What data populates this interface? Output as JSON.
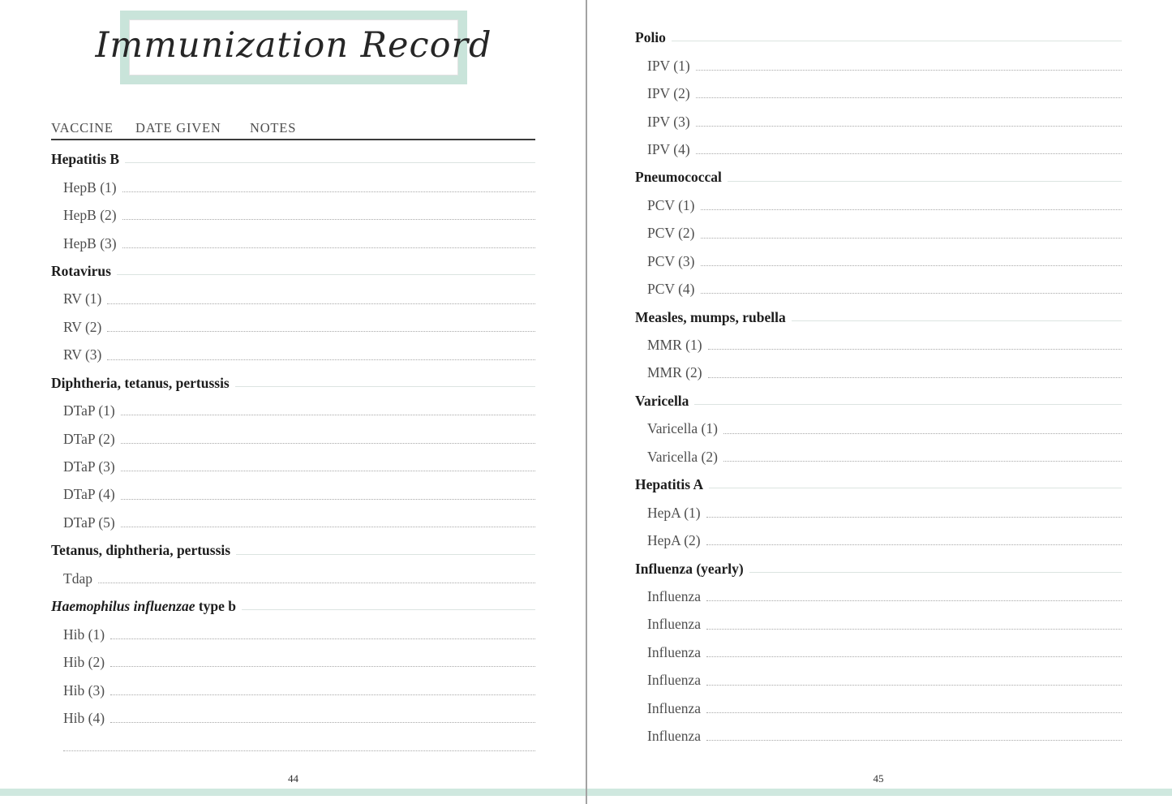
{
  "title": "Immunization Record",
  "columns": [
    "VACCINE",
    "DATE GIVEN",
    "NOTES"
  ],
  "colors": {
    "mint_border": "#c9e4da",
    "bottom_bar": "#cfe8df",
    "divider": "#a3a3a3",
    "section_line": "#dce4e1",
    "header_underline": "#3b3b3b"
  },
  "pages": [
    {
      "number": "44",
      "sections": [
        {
          "title": "Hepatitis B",
          "entries": [
            "HepB (1)",
            "HepB (2)",
            "HepB (3)"
          ]
        },
        {
          "title": "Rotavirus",
          "entries": [
            "RV (1)",
            "RV (2)",
            "RV (3)"
          ]
        },
        {
          "title": "Diphtheria, tetanus, pertussis",
          "entries": [
            "DTaP (1)",
            "DTaP (2)",
            "DTaP (3)",
            "DTaP (4)",
            "DTaP (5)"
          ]
        },
        {
          "title": "Tetanus, diphtheria, pertussis",
          "entries": [
            "Tdap"
          ]
        },
        {
          "title": "Haemophilus influenzae type b",
          "title_italic_prefix": "Haemophilus influenzae",
          "title_plain_suffix": " type b",
          "entries": [
            "Hib (1)",
            "Hib (2)",
            "Hib (3)",
            "Hib (4)",
            ""
          ]
        }
      ]
    },
    {
      "number": "45",
      "sections": [
        {
          "title": "Polio",
          "entries": [
            "IPV (1)",
            "IPV (2)",
            "IPV (3)",
            "IPV (4)"
          ]
        },
        {
          "title": "Pneumococcal",
          "entries": [
            "PCV (1)",
            "PCV (2)",
            "PCV (3)",
            "PCV (4)"
          ]
        },
        {
          "title": "Measles, mumps, rubella",
          "entries": [
            "MMR (1)",
            "MMR (2)"
          ]
        },
        {
          "title": "Varicella",
          "entries": [
            "Varicella (1)",
            "Varicella (2)"
          ]
        },
        {
          "title": "Hepatitis A",
          "entries": [
            "HepA (1)",
            "HepA (2)"
          ]
        },
        {
          "title": "Influenza (yearly)",
          "entries": [
            "Influenza",
            "Influenza",
            "Influenza",
            "Influenza",
            "Influenza",
            "Influenza"
          ]
        }
      ]
    }
  ]
}
